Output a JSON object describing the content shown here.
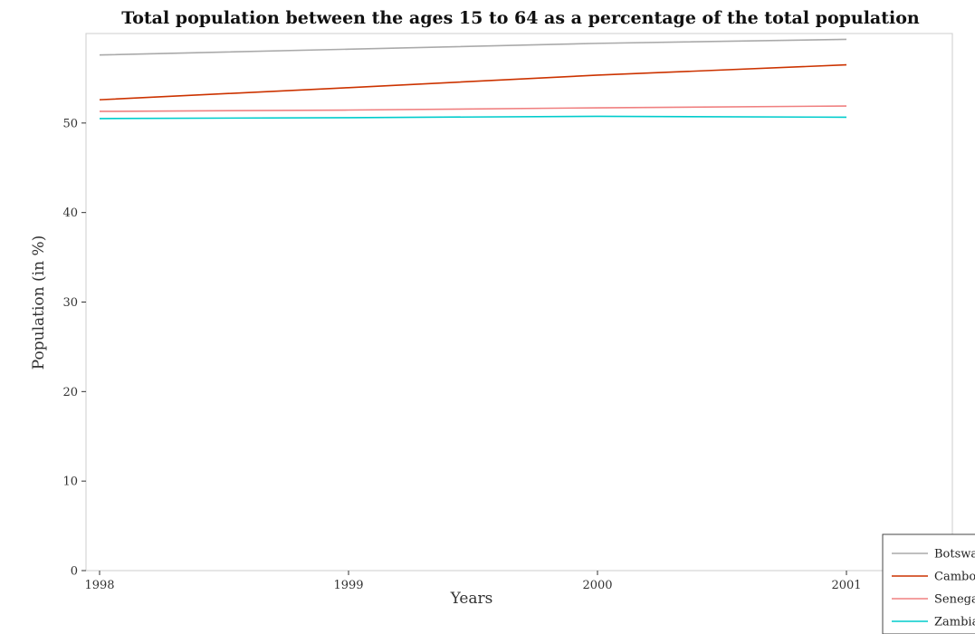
{
  "chart_data": {
    "type": "line",
    "title": "Total population between the ages 15 to 64 as a percentage of the total population",
    "xlabel": "Years",
    "ylabel": "Population (in %)",
    "categories": [
      "1998",
      "1999",
      "2000",
      "2001"
    ],
    "ylim": [
      0,
      60
    ],
    "yticks": [
      0,
      10,
      20,
      30,
      40,
      50
    ],
    "grid": false,
    "legend_position": "bottom-right",
    "series": [
      {
        "name": "Botswana",
        "color": "#aaaaaa",
        "values": [
          57.6,
          58.25,
          58.9,
          59.35
        ]
      },
      {
        "name": "Cambodia",
        "color": "#cc3300",
        "values": [
          52.6,
          53.95,
          55.35,
          56.5
        ]
      },
      {
        "name": "Senegal",
        "color": "#f08080",
        "values": [
          51.3,
          51.45,
          51.7,
          51.9
        ]
      },
      {
        "name": "Zambia",
        "color": "#00cccc",
        "values": [
          50.5,
          50.6,
          50.75,
          50.65
        ]
      }
    ]
  }
}
